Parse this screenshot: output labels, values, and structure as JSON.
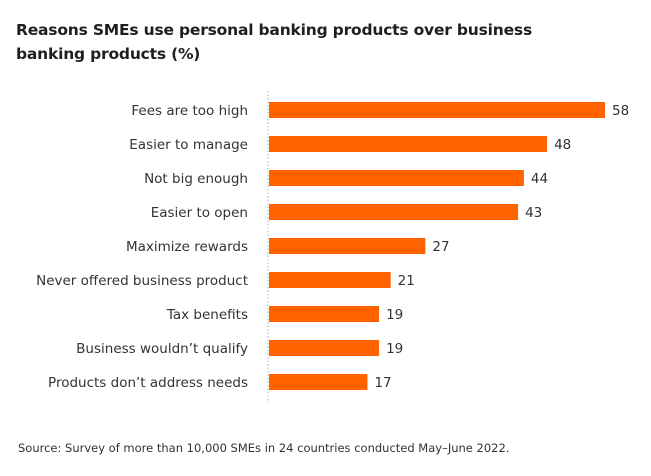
{
  "title_lines": [
    "Reasons SMEs use personal banking products over business",
    "banking products (%)"
  ],
  "source": "Source: Survey of more than 10,000 SMEs in 24 countries conducted May–June 2022.",
  "colors": {
    "bar": "#ff6200",
    "axis": "#b0b0b0",
    "text": "#333333"
  },
  "chart_data": {
    "type": "bar",
    "orientation": "horizontal",
    "title": "Reasons SMEs use personal banking products over business banking products (%)",
    "categories": [
      "Fees are too high",
      "Easier to manage",
      "Not big enough",
      "Easier to open",
      "Maximize rewards",
      "Never offered business product",
      "Tax benefits",
      "Business wouldn’t qualify",
      "Products don’t address needs"
    ],
    "values": [
      58,
      48,
      44,
      43,
      27,
      21,
      19,
      19,
      17
    ],
    "xlim": [
      0,
      58
    ],
    "grid": false,
    "legend": "none",
    "data_labels": true
  }
}
